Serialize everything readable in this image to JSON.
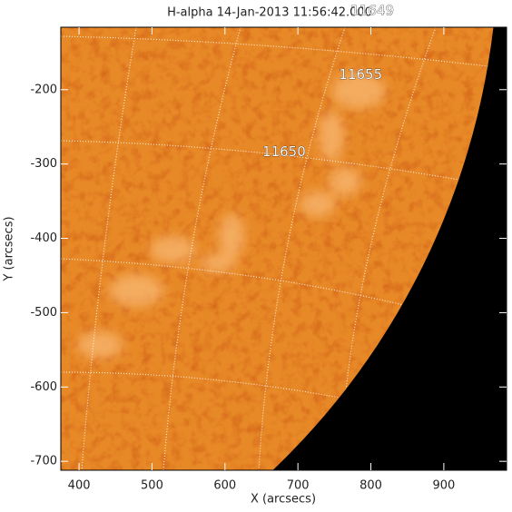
{
  "chart_data": {
    "type": "image",
    "title": "H-alpha 14-Jan-2013 11:56:42.000",
    "x_label": "X (arcsecs)",
    "y_label": "Y (arcsecs)",
    "xlim": [
      375,
      986
    ],
    "ylim": [
      -712,
      -116
    ],
    "xticks": [
      400,
      500,
      600,
      700,
      800,
      900
    ],
    "yticks": [
      -200,
      -300,
      -400,
      -500,
      -600,
      -700
    ],
    "annotations": [
      {
        "text": "11655",
        "x": 786,
        "y": -180
      },
      {
        "text": "11650",
        "x": 681,
        "y": -284
      },
      {
        "text": "11649",
        "x": 802,
        "y": -94
      }
    ]
  }
}
